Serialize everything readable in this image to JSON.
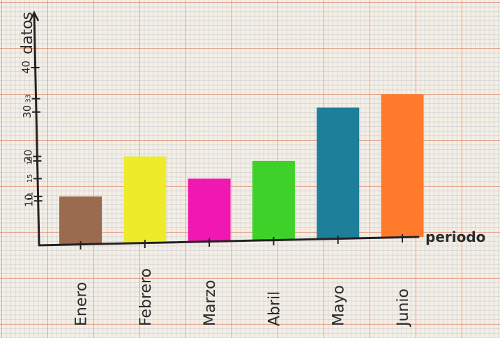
{
  "chart_data": {
    "type": "bar",
    "categories": [
      "Enero",
      "Febrero",
      "Marzo",
      "Abril",
      "Mayo",
      "Junio"
    ],
    "values": [
      11,
      20,
      15,
      19,
      31,
      34
    ],
    "colors": [
      "#9a6b4e",
      "#eeec2a",
      "#f018b0",
      "#3ed12a",
      "#1d7f9a",
      "#ff7a2a"
    ],
    "xlabel": "periodo",
    "ylabel": "datos",
    "yticks": [
      {
        "value": 10,
        "label": "10"
      },
      {
        "value": 11,
        "label": "11"
      },
      {
        "value": 15,
        "label": "15"
      },
      {
        "value": 19,
        "label": "19"
      },
      {
        "value": 20,
        "label": "20"
      },
      {
        "value": 30,
        "label": "30"
      },
      {
        "value": 33,
        "label": "33"
      },
      {
        "value": 40,
        "label": "40"
      }
    ],
    "ylim": [
      0,
      40
    ],
    "grid": true
  }
}
